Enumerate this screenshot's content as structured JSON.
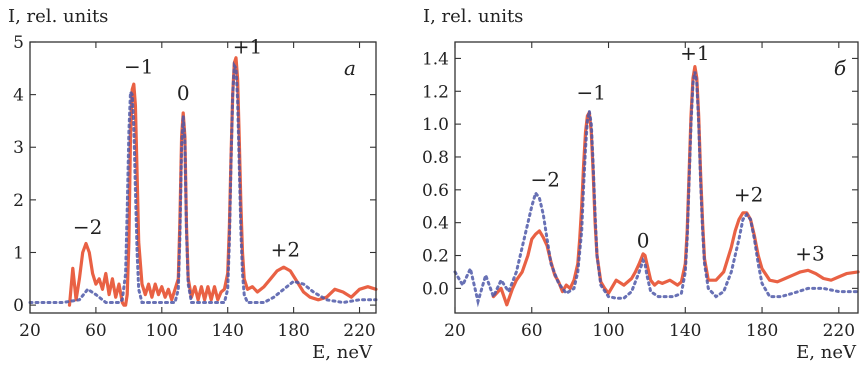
{
  "chart_data": [
    {
      "type": "line",
      "panel_label": "a",
      "ylabel": "I, rel. units",
      "xlabel": "E, neV",
      "xlim": [
        20,
        230
      ],
      "ylim": [
        -0.15,
        5
      ],
      "xticks": [
        20,
        60,
        100,
        140,
        180,
        220
      ],
      "yticks": [
        0,
        1,
        2,
        3,
        4,
        5
      ],
      "annotations": [
        {
          "text": "−2",
          "x": 55,
          "y": 1.35
        },
        {
          "text": "−1",
          "x": 86,
          "y": 4.4
        },
        {
          "text": "0",
          "x": 113,
          "y": 3.9
        },
        {
          "text": "+1",
          "x": 152,
          "y": 4.78
        },
        {
          "text": "+2",
          "x": 175,
          "y": 0.92
        }
      ],
      "series": [
        {
          "style": "solid",
          "color": "#e8583a",
          "x": [
            44,
            46,
            48,
            50,
            52,
            54,
            56,
            58,
            60,
            62,
            64,
            66,
            68,
            70,
            72,
            74,
            76,
            77,
            78,
            79,
            80,
            81,
            82,
            83,
            84,
            85,
            86,
            88,
            90,
            92,
            94,
            96,
            98,
            100,
            102,
            104,
            106,
            108,
            110,
            111,
            112,
            113,
            114,
            115,
            116,
            118,
            120,
            122,
            124,
            126,
            128,
            130,
            132,
            134,
            136,
            138,
            140,
            141,
            142,
            143,
            144,
            145,
            146,
            147,
            148,
            149,
            150,
            152,
            155,
            158,
            162,
            166,
            170,
            174,
            178,
            182,
            186,
            190,
            195,
            200,
            205,
            210,
            215,
            220,
            225,
            230
          ],
          "y": [
            0.0,
            0.7,
            0.1,
            0.5,
            1.0,
            1.17,
            1.0,
            0.6,
            0.4,
            0.5,
            0.3,
            0.6,
            0.2,
            0.5,
            0.15,
            0.4,
            0.05,
            0.0,
            0.0,
            0.2,
            1.2,
            3.2,
            4.1,
            4.2,
            3.8,
            2.5,
            1.2,
            0.4,
            0.2,
            0.4,
            0.15,
            0.4,
            0.2,
            0.35,
            0.15,
            0.3,
            0.1,
            0.3,
            0.5,
            1.6,
            3.2,
            3.65,
            3.2,
            1.5,
            0.5,
            0.15,
            0.35,
            0.1,
            0.35,
            0.1,
            0.35,
            0.1,
            0.35,
            0.1,
            0.25,
            0.3,
            0.6,
            1.5,
            2.8,
            4.0,
            4.6,
            4.7,
            4.3,
            3.2,
            1.9,
            1.0,
            0.5,
            0.3,
            0.35,
            0.25,
            0.35,
            0.5,
            0.65,
            0.72,
            0.65,
            0.45,
            0.25,
            0.15,
            0.1,
            0.15,
            0.3,
            0.25,
            0.15,
            0.3,
            0.35,
            0.3
          ]
        },
        {
          "style": "dotted",
          "color": "#4e58a8",
          "x": [
            20,
            30,
            40,
            50,
            55,
            60,
            66,
            70,
            74,
            76,
            78,
            79,
            80,
            81,
            82,
            83,
            84,
            85,
            86,
            88,
            92,
            96,
            100,
            104,
            108,
            110,
            111,
            112,
            113,
            114,
            115,
            116,
            118,
            122,
            126,
            130,
            134,
            138,
            140,
            141,
            142,
            143,
            144,
            145,
            146,
            147,
            148,
            149,
            150,
            152,
            156,
            162,
            168,
            174,
            180,
            186,
            192,
            200,
            210,
            220,
            230
          ],
          "y": [
            0.05,
            0.05,
            0.05,
            0.1,
            0.3,
            0.2,
            0.05,
            0.05,
            0.05,
            0.1,
            0.6,
            1.8,
            3.3,
            4.05,
            4.0,
            3.4,
            2.2,
            1.0,
            0.3,
            0.05,
            0.05,
            0.05,
            0.05,
            0.05,
            0.05,
            0.3,
            1.3,
            3.0,
            3.6,
            3.1,
            1.4,
            0.4,
            0.05,
            0.05,
            0.05,
            0.05,
            0.05,
            0.05,
            0.3,
            1.2,
            2.7,
            4.0,
            4.55,
            4.5,
            3.9,
            2.7,
            1.4,
            0.6,
            0.2,
            0.05,
            0.05,
            0.05,
            0.15,
            0.3,
            0.45,
            0.4,
            0.25,
            0.1,
            0.05,
            0.1,
            0.1
          ]
        }
      ]
    },
    {
      "type": "line",
      "panel_label": "б",
      "ylabel": "I, rel. units",
      "xlabel": "E, neV",
      "xlim": [
        20,
        230
      ],
      "ylim": [
        -0.15,
        1.5
      ],
      "xticks": [
        20,
        60,
        100,
        140,
        180,
        220
      ],
      "yticks": [
        "0.0",
        "0.2",
        "0.4",
        "0.6",
        "0.8",
        "1.0",
        "1.2",
        "1.4"
      ],
      "annotations": [
        {
          "text": "−2",
          "x": 67,
          "y": 0.62
        },
        {
          "text": "−1",
          "x": 91,
          "y": 1.15
        },
        {
          "text": "0",
          "x": 118,
          "y": 0.25
        },
        {
          "text": "+1",
          "x": 145,
          "y": 1.39
        },
        {
          "text": "+2",
          "x": 173,
          "y": 0.53
        },
        {
          "text": "+3",
          "x": 205,
          "y": 0.17
        }
      ],
      "series": [
        {
          "style": "solid",
          "color": "#e8583a",
          "x": [
            40,
            44,
            47,
            50,
            52,
            55,
            58,
            60,
            62,
            64,
            66,
            68,
            70,
            72,
            74,
            76,
            78,
            80,
            82,
            84,
            85,
            86,
            87,
            88,
            89,
            90,
            91,
            92,
            93,
            94,
            96,
            98,
            100,
            104,
            108,
            112,
            114,
            116,
            118,
            119,
            120,
            122,
            124,
            126,
            128,
            132,
            136,
            138,
            140,
            141,
            142,
            143,
            144,
            145,
            146,
            147,
            148,
            149,
            150,
            152,
            156,
            160,
            164,
            166,
            168,
            170,
            172,
            174,
            176,
            178,
            180,
            184,
            188,
            192,
            196,
            200,
            204,
            208,
            212,
            216,
            220,
            224,
            230
          ],
          "y": [
            -0.05,
            0.0,
            -0.1,
            0.0,
            0.05,
            0.1,
            0.2,
            0.3,
            0.33,
            0.35,
            0.31,
            0.26,
            0.16,
            0.08,
            0.04,
            -0.02,
            0.02,
            0.0,
            0.05,
            0.15,
            0.3,
            0.5,
            0.75,
            0.95,
            1.05,
            1.07,
            0.95,
            0.7,
            0.4,
            0.2,
            0.04,
            0.0,
            -0.03,
            0.05,
            0.02,
            0.06,
            0.1,
            0.15,
            0.21,
            0.2,
            0.15,
            0.05,
            0.02,
            0.04,
            0.03,
            0.05,
            0.02,
            0.04,
            0.15,
            0.35,
            0.7,
            1.05,
            1.28,
            1.35,
            1.28,
            1.05,
            0.7,
            0.4,
            0.18,
            0.05,
            0.05,
            0.1,
            0.25,
            0.35,
            0.42,
            0.46,
            0.46,
            0.42,
            0.32,
            0.2,
            0.12,
            0.05,
            0.04,
            0.06,
            0.08,
            0.1,
            0.11,
            0.09,
            0.06,
            0.05,
            0.07,
            0.09,
            0.1
          ]
        },
        {
          "style": "dotted",
          "color": "#4e58a8",
          "x": [
            20,
            24,
            28,
            32,
            36,
            40,
            44,
            48,
            52,
            56,
            60,
            62,
            64,
            66,
            68,
            70,
            74,
            78,
            82,
            84,
            86,
            87,
            88,
            89,
            90,
            91,
            92,
            93,
            94,
            96,
            100,
            104,
            108,
            112,
            116,
            118,
            119,
            120,
            122,
            126,
            130,
            134,
            138,
            140,
            141,
            142,
            143,
            144,
            145,
            146,
            147,
            148,
            149,
            150,
            152,
            156,
            160,
            164,
            168,
            170,
            172,
            174,
            176,
            178,
            180,
            184,
            190,
            196,
            204,
            212,
            220,
            230
          ],
          "y": [
            0.1,
            0.02,
            0.12,
            -0.08,
            0.08,
            -0.05,
            0.05,
            -0.02,
            0.1,
            0.3,
            0.5,
            0.58,
            0.55,
            0.45,
            0.3,
            0.15,
            0.03,
            -0.03,
            0.0,
            0.1,
            0.35,
            0.62,
            0.85,
            1.02,
            1.08,
            1.0,
            0.75,
            0.45,
            0.2,
            0.02,
            -0.05,
            -0.06,
            -0.06,
            -0.02,
            0.1,
            0.17,
            0.15,
            0.08,
            -0.02,
            -0.05,
            -0.05,
            -0.05,
            -0.03,
            0.1,
            0.3,
            0.65,
            1.0,
            1.25,
            1.32,
            1.25,
            1.0,
            0.65,
            0.35,
            0.15,
            0.0,
            -0.05,
            -0.02,
            0.1,
            0.3,
            0.42,
            0.45,
            0.42,
            0.3,
            0.15,
            0.03,
            -0.05,
            -0.05,
            -0.03,
            0.0,
            0.0,
            -0.02,
            -0.02
          ]
        }
      ]
    }
  ]
}
